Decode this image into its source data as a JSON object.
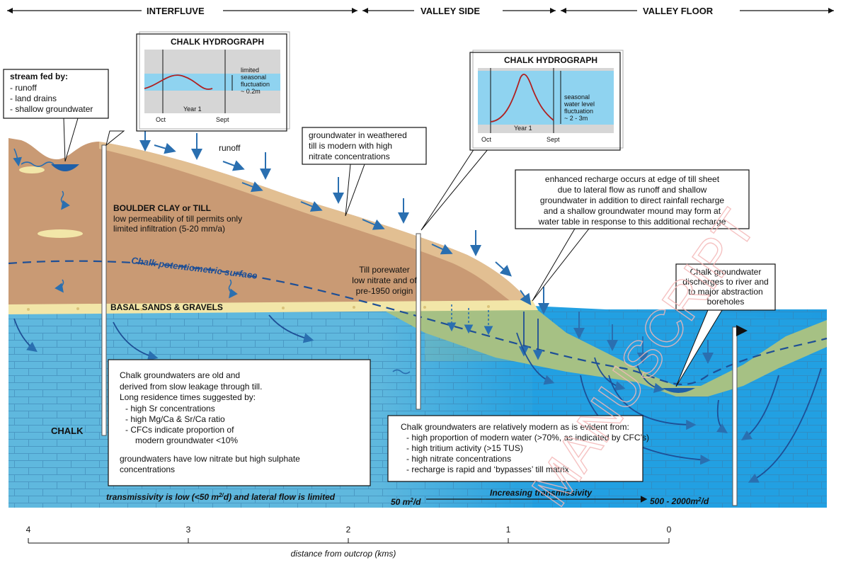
{
  "headers": {
    "interfluve": "INTERFLUVE",
    "valley_side": "VALLEY SIDE",
    "valley_floor": "VALLEY FLOOR"
  },
  "hydrograph_left": {
    "title": "CHALK HYDROGRAPH",
    "note_1": "limited",
    "note_2": "seasonal",
    "note_3": "fluctuation",
    "note_4": "~ 0.2m",
    "x_start": "Oct",
    "x_end": "Sept",
    "year": "Year 1"
  },
  "hydrograph_right": {
    "title": "CHALK HYDROGRAPH",
    "note_1": "seasonal",
    "note_2": "water level",
    "note_3": "fluctuation",
    "note_4": "~ 2 - 3m",
    "x_start": "Oct",
    "x_end": "Sept",
    "year": "Year 1"
  },
  "stream_box": {
    "title": "stream fed by:",
    "item_1": "- runoff",
    "item_2": "- land drains",
    "item_3": "- shallow groundwater"
  },
  "runoff_label": "runoff",
  "weathered_till_note": {
    "line_1": "groundwater in weathered",
    "line_2": "till is modern with high",
    "line_3": "nitrate concentrations"
  },
  "enhanced_recharge_note": {
    "line_1": "enhanced recharge occurs at edge of till sheet",
    "line_2": "due to lateral flow as runoff and shallow",
    "line_3": "groundwater in addition to direct rainfall recharge",
    "line_4": "and a shallow groundwater mound may form at",
    "line_5": "water table in response to this additional recharge"
  },
  "boulder_clay": {
    "title": "BOULDER CLAY or TILL",
    "line_1": "low permeability of till permits only",
    "line_2": "limited infiltration (5-20 mm/a)"
  },
  "potentiometric_label": "Chalk potentiometric surface",
  "basal_label": "BASAL SANDS & GRAVELS",
  "till_porewater": {
    "line_1": "Till porewater",
    "line_2": "low nitrate and of",
    "line_3": "pre-1950 origin"
  },
  "discharge_note": {
    "line_1": "Chalk groundwater",
    "line_2": "discharges to river and",
    "line_3": "to major abstraction",
    "line_4": "boreholes"
  },
  "chalk_label": "CHALK",
  "old_chalk_box": {
    "line_1": "Chalk groundwaters are old and",
    "line_2": "derived from slow  leakage through till.",
    "line_3": "Long residence times suggested by:",
    "line_4": "- high Sr concentrations",
    "line_5": "- high Mg/Ca & Sr/Ca ratio",
    "line_6": "- CFCs indicate proportion of",
    "line_7": "modern groundwater <10%",
    "line_8": "groundwaters have low nitrate but high sulphate",
    "line_9": "concentrations"
  },
  "modern_chalk_box": {
    "line_1": "Chalk groundwaters are relatively modern as is evident from:",
    "line_2": "- high proportion of modern water (>70%, as indicated by CFC’s)",
    "line_3": "- high tritium activity (>15 TUS)",
    "line_4": "- high nitrate concentrations",
    "line_5": "- recharge is rapid and ‘bypasses’  till matrix"
  },
  "transmissivity": {
    "low_prefix": "transmissivity is low (<50 m",
    "low_sup": "2/",
    "low_suffix": "d) and lateral flow is limited",
    "mid_prefix": "50 m",
    "mid_sup": "2",
    "mid_suffix": "/d",
    "increasing": "Increasing transmissivity",
    "high_prefix": "500 - 2000m",
    "high_sup": "2",
    "high_suffix": "/d"
  },
  "scale": {
    "ticks": [
      "4",
      "3",
      "2",
      "1",
      "0"
    ],
    "label": "distance from outcrop (kms)"
  },
  "watermark": "MANUSCRIPT",
  "colors": {
    "till": "#c99a74",
    "till_light": "#e8c89a",
    "chalk": "#5fb8de",
    "chalk_deep": "#2aa3e0",
    "green_till": "#a6c184",
    "gravel": "#f2e6a8",
    "arrow": "#2a6fb0",
    "hydro_band": "#8fd3f0"
  }
}
